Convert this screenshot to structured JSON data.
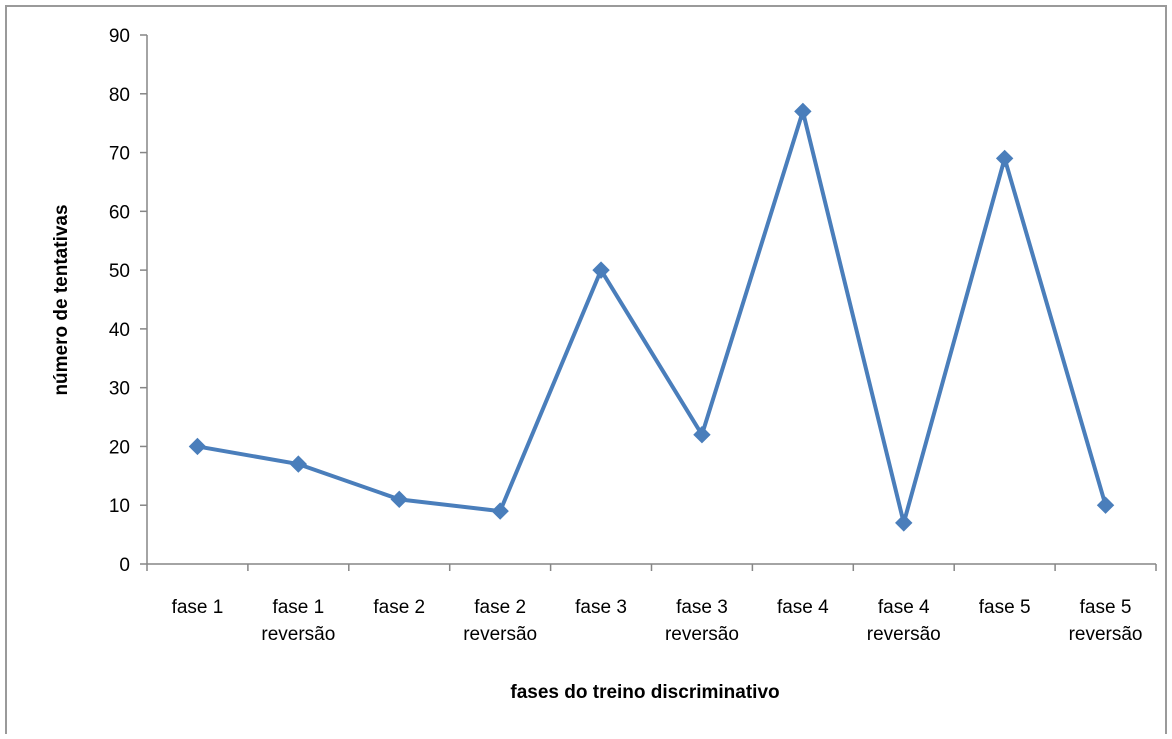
{
  "chart_data": {
    "type": "line",
    "title": "",
    "xlabel": "fases do treino discriminativo",
    "ylabel": "número de tentativas",
    "categories": [
      [
        "fase 1"
      ],
      [
        "fase 1",
        "reversão"
      ],
      [
        "fase 2"
      ],
      [
        "fase 2",
        "reversão"
      ],
      [
        "fase 3"
      ],
      [
        "fase 3",
        "reversão"
      ],
      [
        "fase 4"
      ],
      [
        "fase 4",
        "reversão"
      ],
      [
        "fase 5"
      ],
      [
        "fase 5",
        "reversão"
      ]
    ],
    "series": [
      {
        "values": [
          20,
          17,
          11,
          9,
          50,
          22,
          77,
          7,
          69,
          10
        ],
        "color": "#4a7ebb",
        "marker": "diamond"
      }
    ],
    "ylim": [
      0,
      90
    ],
    "yticks": [
      "0",
      "10",
      "20",
      "30",
      "40",
      "50",
      "60",
      "70",
      "80",
      "90"
    ],
    "grid": false,
    "legend": "none"
  }
}
